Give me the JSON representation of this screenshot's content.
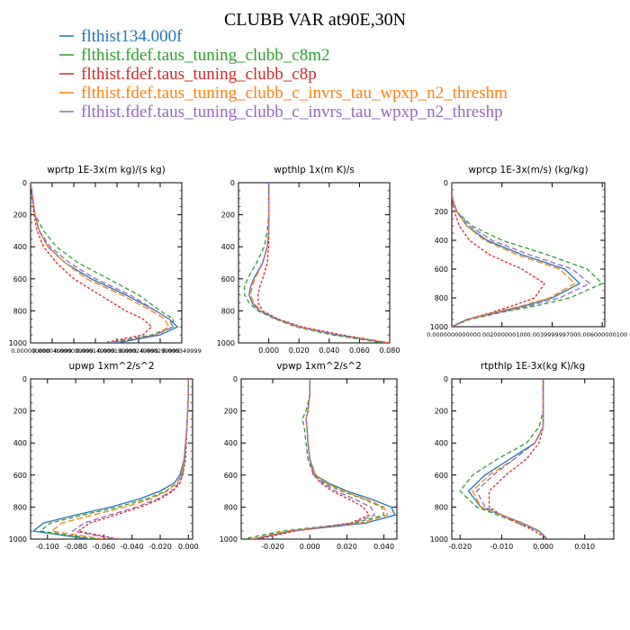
{
  "figure_title": "CLUBB VAR at90E,30N",
  "legend": [
    {
      "name": "flthist134.000f",
      "color": "#1f77b4"
    },
    {
      "name": "flthist.fdef.taus_tuning_clubb_c8m2",
      "color": "#2ca02c"
    },
    {
      "name": "flthist.fdef.taus_tuning_clubb_c8p",
      "color": "#d62728"
    },
    {
      "name": "flthist.fdef.taus_tuning_clubb_c_invrs_tau_wpxp_n2_threshm",
      "color": "#ff7f0e"
    },
    {
      "name": "flthist.fdef.taus_tuning_clubb_c_invrs_tau_wpxp_n2_threshp",
      "color": "#9467bd"
    }
  ],
  "chart_data": [
    {
      "type": "line",
      "title": "wprtp  1E-3x(m kg)/(s kg)",
      "ylim": [
        0,
        1000
      ],
      "y_inverted": true,
      "xlim": [
        0,
        0.00035
      ],
      "x_tick_labels": [
        "0.000000000",
        "0.000049999",
        "0.000099999",
        "0.000149999",
        "0.000199999",
        "0.000249999",
        "0.000299999",
        "0.000349999"
      ],
      "y_tick_labels": [
        "0",
        "200",
        "400",
        "600",
        "800",
        "1000"
      ],
      "y": [
        0,
        100,
        200,
        300,
        400,
        500,
        600,
        700,
        800,
        850,
        900,
        950,
        1000
      ],
      "series": [
        {
          "values": [
            0.0,
            5e-06,
            1e-05,
            2e-05,
            4e-05,
            8e-05,
            0.00014,
            0.00022,
            0.00029,
            0.00032,
            0.00034,
            0.0003,
            0.0002
          ]
        },
        {
          "values": [
            0.0,
            5e-06,
            1e-05,
            3e-05,
            6e-05,
            0.00011,
            0.00018,
            0.00025,
            0.0003,
            0.00033,
            0.00033,
            0.00028,
            0.00018
          ]
        },
        {
          "values": [
            0.0,
            4e-06,
            8e-06,
            1.5e-05,
            3e-05,
            6e-05,
            0.0001,
            0.00016,
            0.00022,
            0.00026,
            0.00028,
            0.00026,
            0.00017
          ]
        },
        {
          "values": [
            0.0,
            5e-06,
            1e-05,
            2e-05,
            4e-05,
            8e-05,
            0.00013,
            0.00021,
            0.00028,
            0.00031,
            0.00032,
            0.00029,
            0.00019
          ]
        },
        {
          "values": [
            0.0,
            5e-06,
            1e-05,
            2e-05,
            4.5e-05,
            9e-05,
            0.00015,
            0.00023,
            0.00029,
            0.00032,
            0.00033,
            0.00029,
            0.00019
          ]
        }
      ]
    },
    {
      "type": "line",
      "title": "wpthlp  1x(m K)/s",
      "ylim": [
        0,
        1000
      ],
      "y_inverted": true,
      "xlim": [
        -0.02,
        0.08
      ],
      "x_tick_labels": [
        "0.000",
        "0.020",
        "0.040",
        "0.060",
        "0.080"
      ],
      "y_tick_labels": [
        "0",
        "200",
        "400",
        "600",
        "800",
        "1000"
      ],
      "y": [
        0,
        100,
        200,
        300,
        400,
        500,
        600,
        650,
        700,
        750,
        800,
        850,
        900,
        950,
        1000
      ],
      "series": [
        {
          "values": [
            0.0,
            0.0,
            0.0,
            0.0,
            -0.001,
            -0.004,
            -0.01,
            -0.012,
            -0.013,
            -0.011,
            -0.006,
            0.005,
            0.02,
            0.045,
            0.08
          ]
        },
        {
          "values": [
            0.0,
            0.0,
            0.0,
            -0.001,
            -0.003,
            -0.008,
            -0.014,
            -0.016,
            -0.016,
            -0.013,
            -0.007,
            0.004,
            0.018,
            0.042,
            0.076
          ]
        },
        {
          "values": [
            0.0,
            0.0,
            0.0,
            0.0,
            0.0,
            -0.001,
            -0.004,
            -0.006,
            -0.007,
            -0.007,
            -0.004,
            0.006,
            0.022,
            0.048,
            0.08
          ]
        },
        {
          "values": [
            0.0,
            0.0,
            0.0,
            0.0,
            -0.001,
            -0.004,
            -0.009,
            -0.011,
            -0.012,
            -0.01,
            -0.005,
            0.005,
            0.02,
            0.046,
            0.08
          ]
        },
        {
          "values": [
            0.0,
            0.0,
            0.0,
            0.0,
            -0.001,
            -0.004,
            -0.01,
            -0.012,
            -0.013,
            -0.011,
            -0.006,
            0.005,
            0.02,
            0.045,
            0.079
          ]
        }
      ]
    },
    {
      "type": "line",
      "title": "wprcp  1E-3x(m/s) (kg/kg)",
      "ylim": [
        0,
        1000
      ],
      "y_inverted": true,
      "xlim": [
        0,
        0.0061
      ],
      "x_tick_labels": [
        "0.000000000000",
        "0.002000000100",
        "0.003999999700",
        "0.006000000100"
      ],
      "y_tick_labels": [
        "0",
        "200",
        "400",
        "600",
        "800",
        "1000"
      ],
      "y": [
        0,
        100,
        200,
        300,
        400,
        500,
        600,
        700,
        800,
        850,
        900,
        950,
        1000
      ],
      "series": [
        {
          "values": [
            0.0,
            0.0,
            0.0002,
            0.0006,
            0.0014,
            0.0028,
            0.0045,
            0.0051,
            0.004,
            0.003,
            0.0018,
            0.0006,
            0.0
          ]
        },
        {
          "values": [
            0.0,
            0.0,
            0.0002,
            0.0008,
            0.002,
            0.0038,
            0.0054,
            0.006,
            0.0047,
            0.0035,
            0.002,
            0.0007,
            0.0
          ]
        },
        {
          "values": [
            0.0,
            0.0,
            0.0001,
            0.0003,
            0.0007,
            0.0015,
            0.0028,
            0.0037,
            0.0033,
            0.0025,
            0.0016,
            0.0006,
            0.0
          ]
        },
        {
          "values": [
            0.0,
            0.0,
            0.0002,
            0.0006,
            0.0013,
            0.0026,
            0.0043,
            0.0049,
            0.0039,
            0.0029,
            0.0017,
            0.0006,
            0.0
          ]
        },
        {
          "values": [
            0.0,
            0.0,
            0.0002,
            0.0007,
            0.0016,
            0.0031,
            0.0048,
            0.0055,
            0.0043,
            0.0032,
            0.0019,
            0.0006,
            0.0
          ]
        }
      ]
    },
    {
      "type": "line",
      "title": "upwp  1xm^2/s^2",
      "ylim": [
        0,
        1000
      ],
      "y_inverted": true,
      "xlim": [
        -0.112,
        0.003
      ],
      "x_tick_labels": [
        "-0.100",
        "-0.080",
        "-0.060",
        "-0.040",
        "-0.020",
        "0.000"
      ],
      "y_tick_labels": [
        "0",
        "200",
        "400",
        "600",
        "800",
        "1000"
      ],
      "y": [
        0,
        100,
        200,
        300,
        400,
        500,
        600,
        650,
        700,
        750,
        800,
        850,
        900,
        950,
        1000
      ],
      "series": [
        {
          "values": [
            0.0,
            0.0,
            -0.0005,
            -0.001,
            -0.002,
            -0.003,
            -0.006,
            -0.01,
            -0.02,
            -0.035,
            -0.055,
            -0.08,
            -0.103,
            -0.11,
            -0.07
          ]
        },
        {
          "values": [
            0.0,
            0.0,
            -0.0005,
            -0.001,
            -0.002,
            -0.003,
            -0.005,
            -0.008,
            -0.016,
            -0.03,
            -0.05,
            -0.075,
            -0.098,
            -0.105,
            -0.065
          ]
        },
        {
          "values": [
            0.0,
            0.0,
            -0.0005,
            -0.001,
            -0.0015,
            -0.002,
            -0.004,
            -0.006,
            -0.011,
            -0.02,
            -0.034,
            -0.052,
            -0.07,
            -0.078,
            -0.05
          ]
        },
        {
          "values": [
            0.0,
            0.0,
            -0.0005,
            -0.001,
            -0.002,
            -0.003,
            -0.005,
            -0.008,
            -0.015,
            -0.027,
            -0.045,
            -0.068,
            -0.09,
            -0.097,
            -0.06
          ]
        },
        {
          "values": [
            0.0,
            0.0,
            -0.0005,
            -0.001,
            -0.002,
            -0.0025,
            -0.004,
            -0.007,
            -0.012,
            -0.022,
            -0.037,
            -0.056,
            -0.074,
            -0.082,
            -0.052
          ]
        }
      ]
    },
    {
      "type": "line",
      "title": "vpwp  1xm^2/s^2",
      "ylim": [
        0,
        1000
      ],
      "y_inverted": true,
      "xlim": [
        -0.037,
        0.047
      ],
      "x_tick_labels": [
        "-0.020",
        "0.000",
        "0.020",
        "0.040"
      ],
      "y_tick_labels": [
        "0",
        "200",
        "400",
        "600",
        "800",
        "1000"
      ],
      "y": [
        0,
        100,
        200,
        250,
        300,
        400,
        500,
        600,
        650,
        700,
        750,
        800,
        850,
        900,
        950,
        1000
      ],
      "series": [
        {
          "values": [
            0.0,
            0.0,
            -0.001,
            -0.002,
            -0.0015,
            -0.001,
            0.0,
            0.003,
            0.01,
            0.02,
            0.033,
            0.044,
            0.046,
            0.03,
            -0.01,
            -0.03
          ]
        },
        {
          "values": [
            0.0,
            0.0,
            -0.002,
            -0.004,
            -0.003,
            -0.002,
            -0.001,
            0.002,
            0.008,
            0.017,
            0.029,
            0.039,
            0.04,
            0.024,
            -0.015,
            -0.036
          ]
        },
        {
          "values": [
            0.0,
            0.0,
            -0.001,
            -0.002,
            -0.0015,
            -0.001,
            0.0,
            0.002,
            0.006,
            0.012,
            0.021,
            0.029,
            0.032,
            0.022,
            -0.008,
            -0.028
          ]
        },
        {
          "values": [
            0.0,
            0.0,
            -0.001,
            -0.002,
            -0.0015,
            -0.001,
            0.0,
            0.003,
            0.009,
            0.018,
            0.03,
            0.04,
            0.042,
            0.027,
            -0.012,
            -0.032
          ]
        },
        {
          "values": [
            0.0,
            0.0,
            -0.001,
            -0.002,
            -0.0015,
            -0.001,
            0.0,
            0.002,
            0.007,
            0.014,
            0.024,
            0.033,
            0.035,
            0.023,
            -0.01,
            -0.03
          ]
        }
      ]
    },
    {
      "type": "line",
      "title": "rtpthlp  1E-3x(kg K)/kg",
      "ylim": [
        0,
        1000
      ],
      "y_inverted": true,
      "xlim": [
        -0.022,
        0.017
      ],
      "x_tick_labels": [
        "-0.020",
        "-0.010",
        "0.000",
        "0.010"
      ],
      "y_tick_labels": [
        "0",
        "200",
        "400",
        "600",
        "800",
        "1000"
      ],
      "y": [
        0,
        100,
        200,
        300,
        400,
        500,
        600,
        700,
        800,
        850,
        900,
        950,
        1000
      ],
      "series": [
        {
          "values": [
            0.0,
            0.0,
            0.0,
            0.0,
            -0.002,
            -0.008,
            -0.014,
            -0.018,
            -0.015,
            -0.01,
            -0.005,
            -0.001,
            0.001
          ]
        },
        {
          "values": [
            0.0,
            0.0,
            0.0,
            -0.001,
            -0.004,
            -0.011,
            -0.017,
            -0.02,
            -0.016,
            -0.011,
            -0.006,
            -0.001,
            0.001
          ]
        },
        {
          "values": [
            0.0,
            0.0,
            0.0,
            0.0,
            -0.001,
            -0.004,
            -0.009,
            -0.013,
            -0.013,
            -0.01,
            -0.006,
            -0.002,
            0.001
          ]
        },
        {
          "values": [
            0.0,
            0.0,
            0.0,
            0.0,
            -0.002,
            -0.007,
            -0.013,
            -0.017,
            -0.015,
            -0.01,
            -0.005,
            -0.001,
            0.001
          ]
        },
        {
          "values": [
            0.0,
            0.0,
            0.0,
            0.0,
            -0.002,
            -0.007,
            -0.012,
            -0.016,
            -0.014,
            -0.01,
            -0.005,
            -0.001,
            0.001
          ]
        }
      ]
    }
  ]
}
